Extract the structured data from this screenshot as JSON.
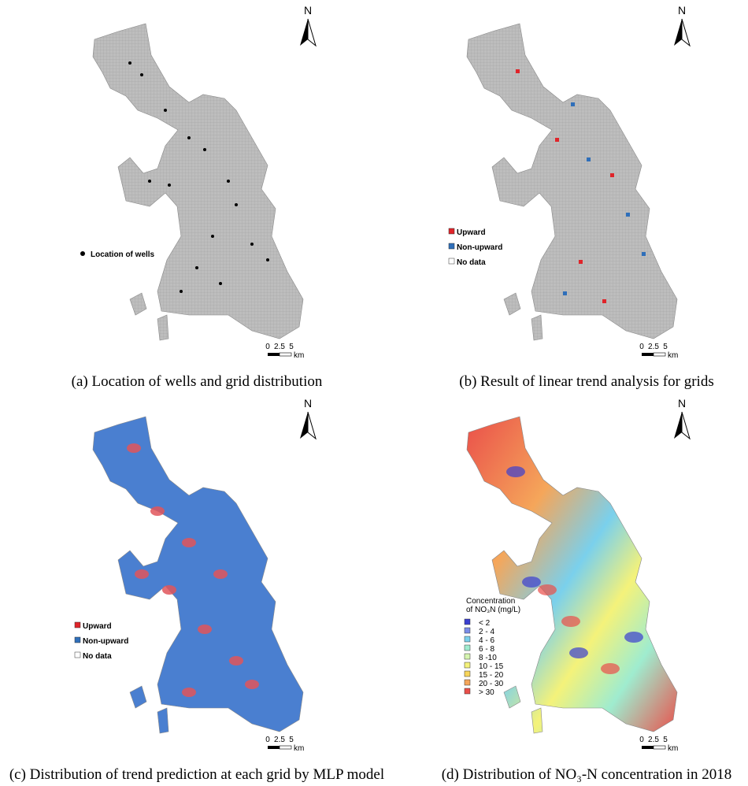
{
  "panels": [
    {
      "caption": "(a) Location of wells and grid distribution",
      "north": "N",
      "scale": {
        "labels": [
          "0",
          "2.5",
          "5"
        ],
        "unit": "km"
      },
      "legend": {
        "items": [
          {
            "label": "Location of wells",
            "color": "#000000"
          }
        ]
      }
    },
    {
      "caption": "(b) Result of linear trend analysis for grids",
      "north": "N",
      "scale": {
        "labels": [
          "0",
          "2.5",
          "5"
        ],
        "unit": "km"
      },
      "legend": {
        "items": [
          {
            "label": "Upward",
            "color": "#e0242a"
          },
          {
            "label": "Non-upward",
            "color": "#2f6fba"
          },
          {
            "label": "No data",
            "color": "#ffffff"
          }
        ]
      }
    },
    {
      "caption": "(c) Distribution of trend prediction at each grid by MLP model",
      "north": "N",
      "scale": {
        "labels": [
          "0",
          "2.5",
          "5"
        ],
        "unit": "km"
      },
      "legend": {
        "items": [
          {
            "label": "Upward",
            "color": "#e0242a"
          },
          {
            "label": "Non-upward",
            "color": "#2f6fba"
          },
          {
            "label": "No data",
            "color": "#ffffff"
          }
        ]
      }
    },
    {
      "caption": "(d) Distribution of NO₃-N concentration in 2018",
      "north": "N",
      "scale": {
        "labels": [
          "0",
          "2.5",
          "5"
        ],
        "unit": "km"
      },
      "legend": {
        "title": [
          "Concentration",
          "of NO₃N (mg/L)"
        ],
        "items": [
          {
            "label": "< 2",
            "color": "#3a3fd0"
          },
          {
            "label": "2 - 4",
            "color": "#7a8ce8"
          },
          {
            "label": "4 - 6",
            "color": "#7ad0ec"
          },
          {
            "label": "6 - 8",
            "color": "#9feccf"
          },
          {
            "label": "8 -10",
            "color": "#d6f5b0"
          },
          {
            "label": "10 - 15",
            "color": "#f4f27a"
          },
          {
            "label": "15 - 20",
            "color": "#f7d55a"
          },
          {
            "label": "20 - 30",
            "color": "#f5a65a"
          },
          {
            "label": "> 30",
            "color": "#ea4f4a"
          }
        ]
      }
    }
  ]
}
